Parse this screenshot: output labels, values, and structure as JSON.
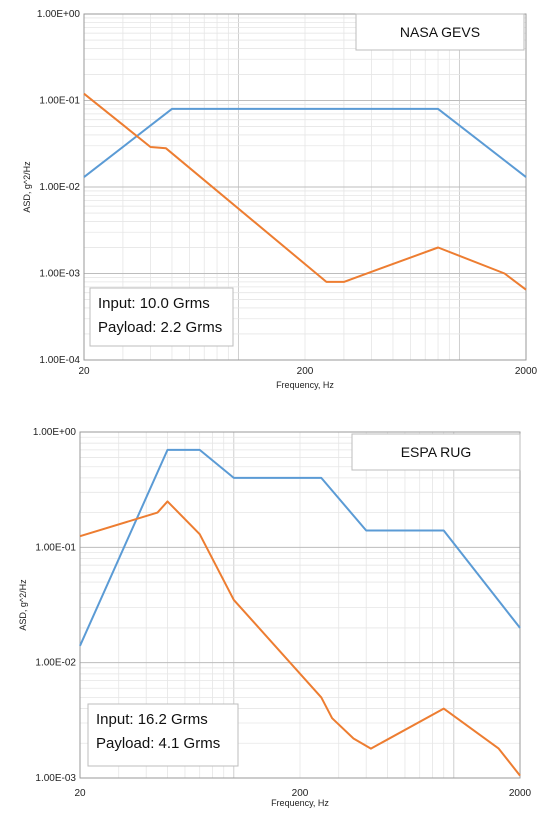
{
  "chart_data": [
    {
      "type": "line",
      "title": "NASA GEVS",
      "xlabel": "Frequency, Hz",
      "ylabel": "ASD, g^2/Hz",
      "x_scale": "log",
      "y_scale": "log",
      "xlim": [
        20,
        2000
      ],
      "ylim": [
        0.0001,
        1
      ],
      "x_ticks": [
        "20",
        "200",
        "2000"
      ],
      "y_ticks": [
        "1.00E+00",
        "1.00E-01",
        "1.00E-02",
        "1.00E-03",
        "1.00E-04"
      ],
      "grid": true,
      "annotation": [
        "Input: 10.0 Grms",
        "Payload: 2.2 Grms"
      ],
      "series": [
        {
          "color": "#5b9bd5",
          "x": [
            20,
            50,
            800,
            2000
          ],
          "y": [
            0.013,
            0.08,
            0.08,
            0.013
          ]
        },
        {
          "color": "#ed7d31",
          "x": [
            20,
            40,
            47,
            250,
            300,
            800,
            1600,
            2000
          ],
          "y": [
            0.12,
            0.029,
            0.028,
            0.0008,
            0.0008,
            0.002,
            0.001,
            0.00065
          ]
        }
      ]
    },
    {
      "type": "line",
      "title": "ESPA RUG",
      "xlabel": "Frequency, Hz",
      "ylabel": "ASD, g^2/Hz",
      "x_scale": "log",
      "y_scale": "log",
      "xlim": [
        20,
        2000
      ],
      "ylim": [
        0.001,
        1
      ],
      "x_ticks": [
        "20",
        "200",
        "2000"
      ],
      "y_ticks": [
        "1.00E+00",
        "1.00E-01",
        "1.00E-02",
        "1.00E-03"
      ],
      "grid": true,
      "annotation": [
        "Input: 16.2 Grms",
        "Payload: 4.1 Grms"
      ],
      "series": [
        {
          "color": "#5b9bd5",
          "x": [
            20,
            50,
            70,
            100,
            250,
            400,
            900,
            2000
          ],
          "y": [
            0.014,
            0.7,
            0.7,
            0.4,
            0.4,
            0.14,
            0.14,
            0.02
          ]
        },
        {
          "color": "#ed7d31",
          "x": [
            20,
            45,
            50,
            70,
            100,
            250,
            280,
            350,
            420,
            900,
            1600,
            2000
          ],
          "y": [
            0.125,
            0.2,
            0.25,
            0.13,
            0.035,
            0.005,
            0.0033,
            0.0022,
            0.0018,
            0.004,
            0.0018,
            0.00105
          ]
        }
      ]
    }
  ]
}
